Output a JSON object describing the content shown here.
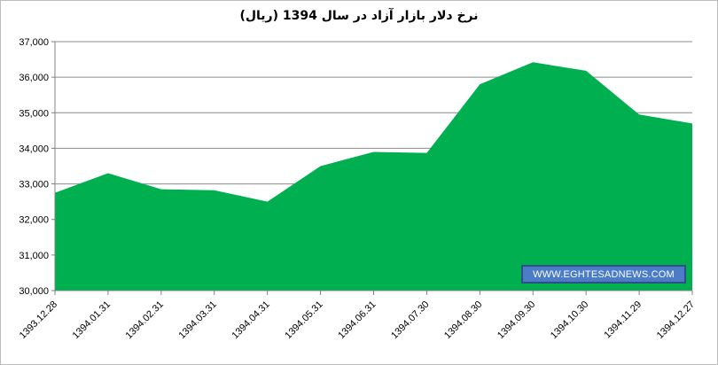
{
  "chart_data": {
    "type": "area",
    "title": "نرخ دلار بازار آزاد در سال 1394 (ریال)",
    "categories": [
      "1393.12.28",
      "1394.01.31",
      "1394.02.31",
      "1394.03.31",
      "1394.04.31",
      "1394.05.31",
      "1394.06.31",
      "1394.07.30",
      "1394.08.30",
      "1394.09.30",
      "1394.10.30",
      "1394.11.29",
      "1394.12.27"
    ],
    "values": [
      32750,
      33300,
      32850,
      32820,
      32500,
      33500,
      33900,
      33870,
      35800,
      36420,
      36180,
      34950,
      34700
    ],
    "ylim": [
      30000,
      37000
    ],
    "yticks": [
      "30,000",
      "31,000",
      "32,000",
      "33,000",
      "34,000",
      "35,000",
      "36,000",
      "37,000"
    ],
    "grid": true,
    "fill_color": "#00b050",
    "watermark": "WWW.EGHTESADNEWS.COM"
  }
}
